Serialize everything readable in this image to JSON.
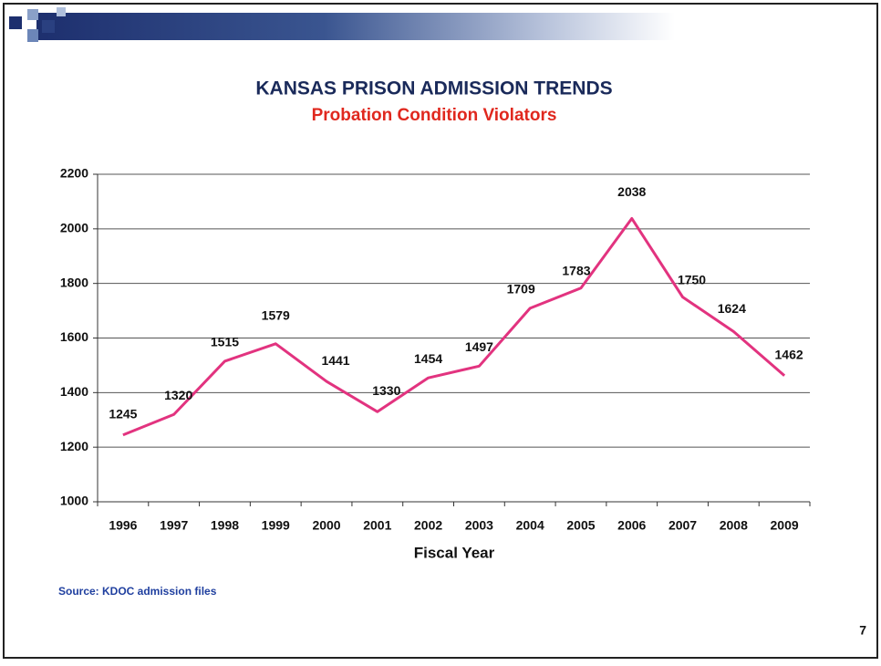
{
  "chart_data": {
    "type": "line",
    "title": "KANSAS PRISON ADMISSION TRENDS",
    "subtitle": "Probation Condition Violators",
    "x_label": "Fiscal Year",
    "categories": [
      "1996",
      "1997",
      "1998",
      "1999",
      "2000",
      "2001",
      "2002",
      "2003",
      "2004",
      "2005",
      "2006",
      "2007",
      "2008",
      "2009"
    ],
    "series": [
      {
        "name": "Probation Condition Violators",
        "color": "#e2337f",
        "values": [
          1245,
          1320,
          1515,
          1579,
          1441,
          1330,
          1454,
          1497,
          1709,
          1783,
          2038,
          1750,
          1624,
          1462
        ]
      }
    ],
    "ylim": [
      1000,
      2200
    ],
    "yticks": [
      1000,
      1200,
      1400,
      1600,
      1800,
      2000,
      2200
    ],
    "grid": true,
    "data_labels": true
  },
  "source": "Source: KDOC admission files",
  "page_number": "7"
}
